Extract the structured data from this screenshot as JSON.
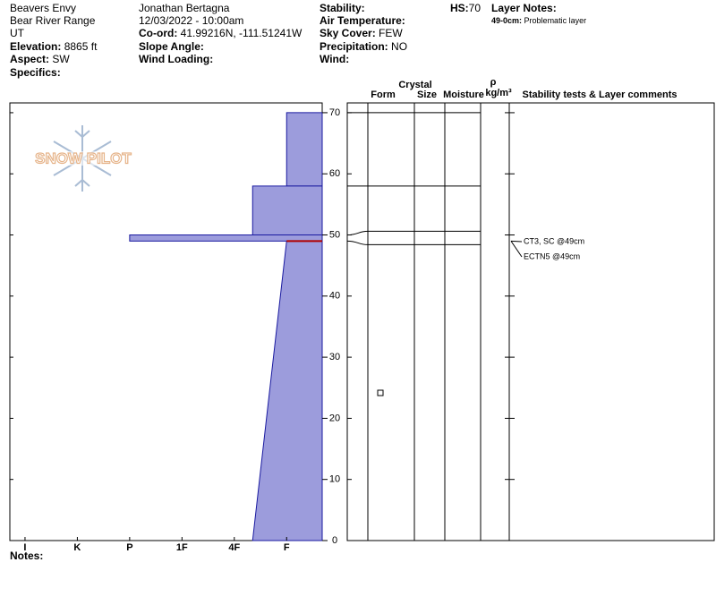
{
  "header": {
    "site": "Beavers Envy",
    "range": "Bear River Range",
    "state": "UT",
    "elevation": {
      "label": "Elevation:",
      "value": "8865 ft"
    },
    "aspect": {
      "label": "Aspect:",
      "value": "SW"
    },
    "specifics": {
      "label": "Specifics:"
    },
    "observer": "Jonathan Bertagna",
    "datetime": "12/03/2022 - 10:00am",
    "coord": {
      "label": "Co-ord:",
      "value": "41.99216N, -111.51241W"
    },
    "slope_angle": {
      "label": "Slope Angle:"
    },
    "wind_loading": {
      "label": "Wind Loading:"
    },
    "stability": {
      "label": "Stability:"
    },
    "air_temperature": {
      "label": "Air Temperature:"
    },
    "sky_cover": {
      "label": "Sky Cover:",
      "value": "FEW"
    },
    "precipitation": {
      "label": "Precipitation:",
      "value": "NO"
    },
    "wind": {
      "label": "Wind:"
    },
    "hs": {
      "label": "HS:",
      "value": 70
    },
    "layer_notes": {
      "label": "Layer Notes:",
      "range": "49-0cm:",
      "text": "Problematic layer"
    }
  },
  "logo": "SNOW PILOT",
  "profile": {
    "ylim": [
      0,
      71.6
    ],
    "yticks": [
      0,
      10,
      20,
      30,
      40,
      50,
      60,
      70
    ],
    "xlim": [
      0.71,
      6.68
    ],
    "xticks": [
      {
        "value": 1,
        "label": "I"
      },
      {
        "value": 2,
        "label": "K"
      },
      {
        "value": 3,
        "label": "P"
      },
      {
        "value": 4,
        "label": "1F"
      },
      {
        "value": 5,
        "label": "4F"
      },
      {
        "value": 6,
        "label": "F"
      }
    ],
    "color": "#9c9cdc",
    "layers": [
      {
        "top": 70,
        "bottom": 58,
        "hardness_top": 6,
        "hardness_bottom": 6
      },
      {
        "top": 58,
        "bottom": 50,
        "hardness_top": 5.35,
        "hardness_bottom": 5.35
      },
      {
        "top": 50,
        "bottom": 49,
        "hardness_top": 3,
        "hardness_bottom": 3
      },
      {
        "top": 49,
        "bottom": 0,
        "hardness_top": 6,
        "hardness_bottom": 5.35
      }
    ],
    "problem_layer": 49,
    "problem_color": "#b00000"
  },
  "columns": {
    "form": "Form",
    "crystal": "Crystal",
    "size": "Size",
    "moisture": "Moisture",
    "rho": "ρ",
    "density_unit": "kg/m³",
    "comments": "Stability tests & Layer comments"
  },
  "stability_tests": [
    {
      "text": "CT3, SC @49cm",
      "depth": 49
    },
    {
      "text": "ECTN5 @49cm",
      "depth": 49
    }
  ],
  "notes": {
    "label": "Notes:"
  }
}
